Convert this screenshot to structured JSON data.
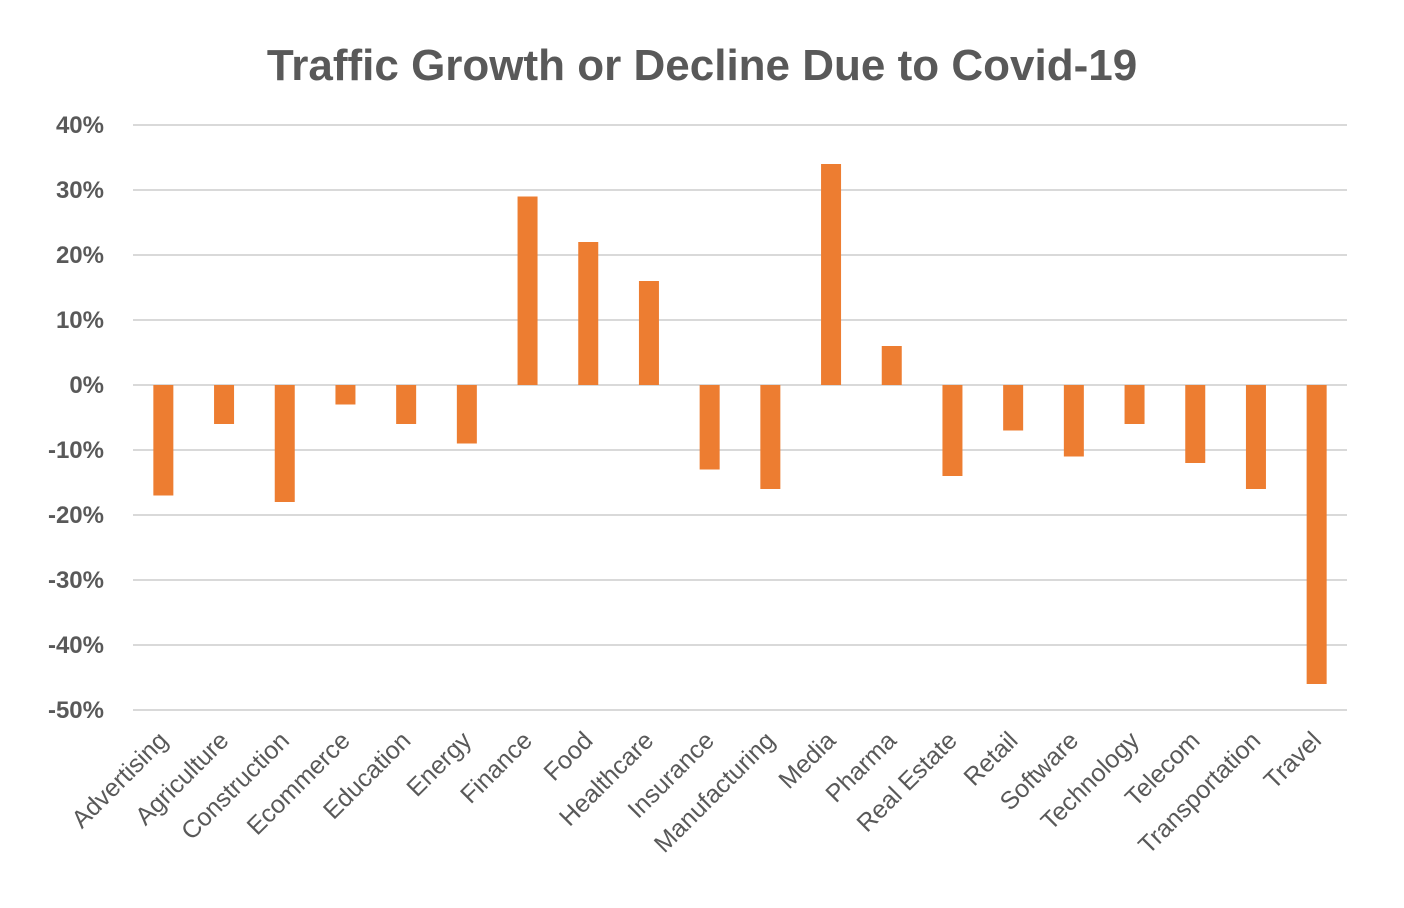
{
  "chart_data": {
    "type": "bar",
    "title": "Traffic Growth or Decline Due to Covid-19",
    "xlabel": "",
    "ylabel": "",
    "ylim": [
      -50,
      40
    ],
    "yticks": [
      40,
      30,
      20,
      10,
      0,
      -10,
      -20,
      -30,
      -40,
      -50
    ],
    "ytick_labels": [
      "40%",
      "30%",
      "20%",
      "10%",
      "0%",
      "-10%",
      "-20%",
      "-30%",
      "-40%",
      "-50%"
    ],
    "grid": true,
    "bar_color": "#ED7D31",
    "categories": [
      "Advertising",
      "Agriculture",
      "Construction",
      "Ecommerce",
      "Education",
      "Energy",
      "Finance",
      "Food",
      "Healthcare",
      "Insurance",
      "Manufacturing",
      "Media",
      "Pharma",
      "Real Estate",
      "Retail",
      "Software",
      "Technology",
      "Telecom",
      "Transportation",
      "Travel"
    ],
    "values": [
      -17,
      -6,
      -18,
      -3,
      -6,
      -9,
      29,
      22,
      16,
      -13,
      -16,
      34,
      6,
      -14,
      -7,
      -11,
      -6,
      -12,
      -16,
      -46
    ]
  }
}
